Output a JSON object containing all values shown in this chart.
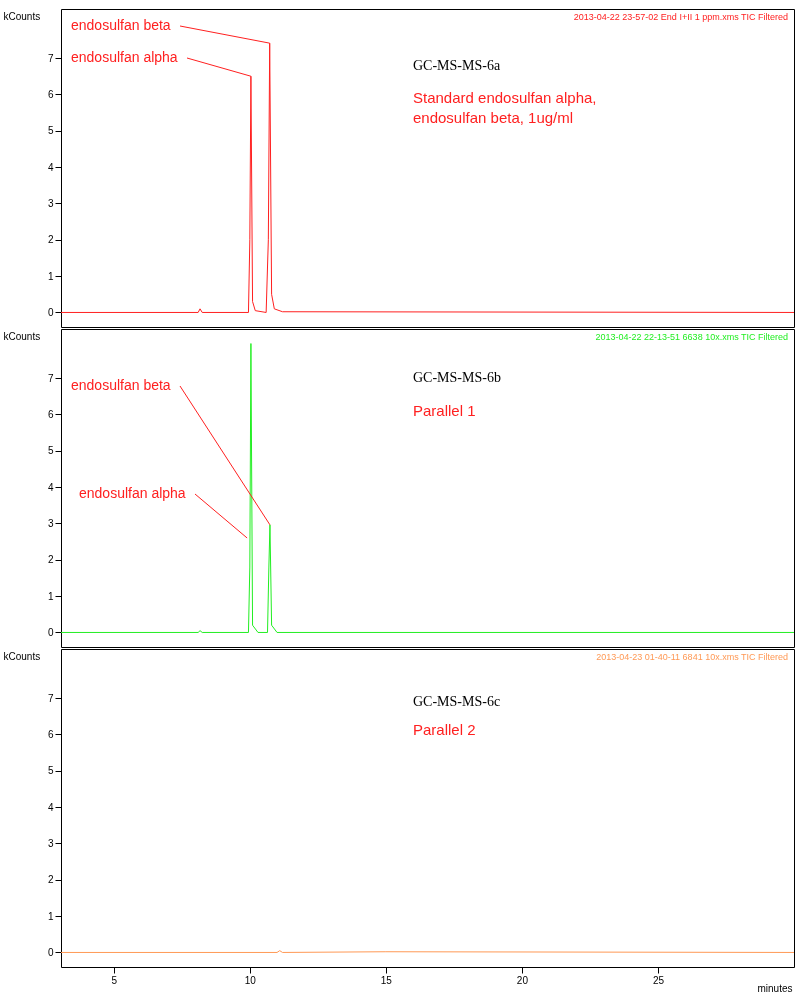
{
  "chart_data": [
    {
      "type": "line",
      "title": "GC-MS-MS-6a",
      "subtitle": "Standard endosulfan alpha, endosulfan beta, 1ug/ml",
      "ylabel": "kCounts",
      "xlim": [
        3.06,
        30
      ],
      "xticks": [
        5,
        10,
        15,
        20,
        25
      ],
      "ylim": [
        -0.4,
        8.35
      ],
      "yticks": [
        0,
        1,
        2,
        3,
        4,
        5,
        6,
        7
      ],
      "tick_labels": "y",
      "series": [
        {
          "name": "2013-04-22 23-57-02 End I+II 1 ppm.xms TIC Filtered",
          "color": "#ff2020",
          "x": [
            3.06,
            8.1,
            8.17,
            8.25,
            9.95,
            10.0,
            10.04,
            10.1,
            10.2,
            10.6,
            10.68,
            10.73,
            10.8,
            10.9,
            11.2,
            30
          ],
          "values": [
            0,
            0,
            0.1,
            0,
            0,
            2,
            6.5,
            0.3,
            0.05,
            0,
            2,
            7.41,
            0.5,
            0.1,
            0.02,
            0
          ]
        }
      ],
      "annotations": [
        {
          "text": "endosulfan beta",
          "x": 10.73,
          "y": 7.41
        },
        {
          "text": "endosulfan alpha",
          "x": 10.04,
          "y": 6.5
        }
      ]
    },
    {
      "type": "line",
      "title": "GC-MS-MS-6b",
      "subtitle": "Parallel 1",
      "ylabel": "kCounts",
      "xlim": [
        3.06,
        30
      ],
      "xticks": [
        5,
        10,
        15,
        20,
        25
      ],
      "ylim": [
        -0.4,
        8.35
      ],
      "yticks": [
        0,
        1,
        2,
        3,
        4,
        5,
        6,
        7
      ],
      "tick_labels": "y",
      "series": [
        {
          "name": "2013-04-22 22-13-51 6638 10x.xms TIC Filtered",
          "color": "#22ee22",
          "x": [
            3.06,
            8.1,
            8.17,
            8.25,
            9.95,
            10.0,
            10.04,
            10.1,
            10.3,
            10.65,
            10.7,
            10.74,
            10.8,
            11.0,
            30
          ],
          "values": [
            0,
            0,
            0.05,
            0,
            0,
            1.8,
            7.95,
            0.2,
            0,
            0,
            1.8,
            2.96,
            0.2,
            0,
            0
          ]
        }
      ],
      "annotations": [
        {
          "text": "endosulfan beta",
          "x": 10.74,
          "y": 2.96
        },
        {
          "text": "endosulfan alpha",
          "x": 9.9,
          "y": 2.6
        }
      ]
    },
    {
      "type": "line",
      "title": "GC-MS-MS-6c",
      "subtitle": "Parallel 2",
      "xlabel": "minutes",
      "ylabel": "kCounts",
      "xlim": [
        3.06,
        30
      ],
      "xticks": [
        5,
        10,
        15,
        20,
        25
      ],
      "ylim": [
        -0.4,
        8.35
      ],
      "yticks": [
        0,
        1,
        2,
        3,
        4,
        5,
        6,
        7
      ],
      "series": [
        {
          "name": "2013-04-23 01-40-11 6841 10x.xms TIC Filtered",
          "color": "#ff9955",
          "x": [
            3.06,
            11.0,
            11.1,
            11.2,
            15.0,
            30
          ],
          "values": [
            0,
            0,
            0.05,
            0,
            0.02,
            0
          ]
        }
      ]
    }
  ]
}
